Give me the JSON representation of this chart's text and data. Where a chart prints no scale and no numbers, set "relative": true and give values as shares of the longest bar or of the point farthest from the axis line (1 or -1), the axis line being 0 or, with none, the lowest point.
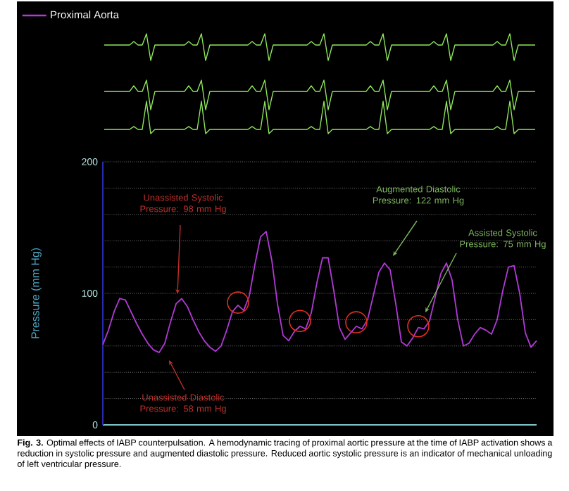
{
  "chart_data": [
    {
      "type": "line",
      "relative": true,
      "categories": [
        null,
        null,
        null,
        null,
        null,
        null,
        null,
        null,
        null,
        null,
        null,
        null,
        null,
        null,
        null,
        null,
        null,
        null,
        null,
        null,
        null,
        null,
        null,
        null,
        null,
        null,
        null,
        null,
        null,
        null,
        null,
        null,
        null,
        null,
        null,
        null,
        null,
        null,
        null,
        null,
        null,
        null,
        null,
        null,
        null,
        null,
        null,
        null,
        null,
        null,
        null,
        null,
        null,
        null,
        null,
        null,
        null,
        null,
        null,
        null,
        null,
        null,
        null,
        null,
        null,
        null,
        null,
        null,
        null,
        null,
        null,
        null,
        null,
        null,
        null,
        null,
        null,
        null,
        null,
        null,
        null,
        null,
        null,
        null,
        null,
        null,
        null,
        null,
        null,
        null,
        null,
        null,
        null,
        null,
        null,
        null,
        null,
        null,
        null,
        null,
        null,
        null,
        null
      ],
      "series": [
        {
          "color": "#8ee85a",
          "values": [
            0.58,
            0.58,
            0.58,
            0.58,
            0.58,
            0.58,
            0.58,
            0.71,
            0.58,
            0.58,
            1,
            0,
            0.58,
            0.58,
            0.58,
            0.58,
            0.58,
            0.58,
            0.58,
            0.58,
            0.71,
            0.58,
            0.58,
            1,
            0,
            0.58,
            0.58,
            0.58,
            0.58,
            0.58,
            0.58,
            0.58,
            0.58,
            0.58,
            0.58,
            0.71,
            0.58,
            0.58,
            1,
            0,
            0.58,
            0.58,
            0.58,
            0.58,
            0.58,
            0.58,
            0.58,
            0.58,
            0.58,
            0.71,
            0.58,
            0.58,
            1,
            0,
            0.58,
            0.58,
            0.58,
            0.58,
            0.58,
            0.58,
            0.58,
            0.58,
            0.58,
            0.71,
            0.58,
            0.58,
            1,
            0,
            0.58,
            0.58,
            0.58,
            0.58,
            0.58,
            0.58,
            0.58,
            0.58,
            0.58,
            0.58,
            0.71,
            0.58,
            0.58,
            1,
            0,
            0.58,
            0.58,
            0.58,
            0.58,
            0.58,
            0.58,
            0.58,
            0.58,
            0.58,
            0.58,
            0.71,
            0.58,
            0.58,
            1,
            0,
            0.58,
            0.58,
            0.58,
            0.58,
            0.58
          ]
        }
      ]
    },
    {
      "type": "line",
      "relative": true,
      "categories": [
        null,
        null,
        null,
        null,
        null,
        null,
        null,
        null,
        null,
        null,
        null,
        null,
        null,
        null,
        null,
        null,
        null,
        null,
        null,
        null,
        null,
        null,
        null,
        null,
        null,
        null,
        null,
        null,
        null,
        null,
        null,
        null,
        null,
        null,
        null,
        null,
        null,
        null,
        null,
        null,
        null,
        null,
        null,
        null,
        null,
        null,
        null,
        null,
        null,
        null,
        null,
        null,
        null,
        null,
        null,
        null,
        null,
        null,
        null,
        null,
        null,
        null,
        null,
        null,
        null,
        null,
        null,
        null,
        null,
        null,
        null,
        null,
        null,
        null,
        null,
        null,
        null,
        null,
        null,
        null,
        null,
        null,
        null,
        null,
        null,
        null,
        null,
        null,
        null,
        null,
        null,
        null,
        null,
        null,
        null,
        null,
        null,
        null,
        null,
        null,
        null,
        null,
        null
      ],
      "series": [
        {
          "color": "#8ee85a",
          "values": [
            0.62,
            0.62,
            0.62,
            0.62,
            0.62,
            0.62,
            0.62,
            0.81,
            0.62,
            0.62,
            1,
            0,
            0.62,
            0.62,
            0.62,
            0.62,
            0.62,
            0.62,
            0.62,
            0.62,
            0.81,
            0.62,
            0.62,
            1,
            0,
            0.62,
            0.62,
            0.62,
            0.62,
            0.62,
            0.62,
            0.62,
            0.62,
            0.62,
            0.62,
            0.81,
            0.62,
            0.62,
            1,
            0,
            0.62,
            0.62,
            0.62,
            0.62,
            0.62,
            0.62,
            0.62,
            0.62,
            0.62,
            0.81,
            0.62,
            0.62,
            1,
            0,
            0.62,
            0.62,
            0.62,
            0.62,
            0.62,
            0.62,
            0.62,
            0.62,
            0.62,
            0.81,
            0.62,
            0.62,
            1,
            0,
            0.62,
            0.62,
            0.62,
            0.62,
            0.62,
            0.62,
            0.62,
            0.62,
            0.62,
            0.62,
            0.81,
            0.62,
            0.62,
            1,
            0,
            0.62,
            0.62,
            0.62,
            0.62,
            0.62,
            0.62,
            0.62,
            0.62,
            0.62,
            0.62,
            0.81,
            0.62,
            0.62,
            1,
            0,
            0.62,
            0.62,
            0.62,
            0.62,
            0.62
          ]
        }
      ]
    },
    {
      "type": "line",
      "relative": true,
      "categories": [
        null,
        null,
        null,
        null,
        null,
        null,
        null,
        null,
        null,
        null,
        null,
        null,
        null,
        null,
        null,
        null,
        null,
        null,
        null,
        null,
        null,
        null,
        null,
        null,
        null,
        null,
        null,
        null,
        null,
        null,
        null,
        null,
        null,
        null,
        null,
        null,
        null,
        null,
        null,
        null,
        null,
        null,
        null,
        null,
        null,
        null,
        null,
        null,
        null,
        null,
        null,
        null,
        null,
        null,
        null,
        null,
        null,
        null,
        null,
        null,
        null,
        null,
        null,
        null,
        null,
        null,
        null,
        null,
        null,
        null,
        null,
        null,
        null,
        null,
        null,
        null,
        null,
        null,
        null,
        null,
        null,
        null,
        null,
        null,
        null,
        null,
        null,
        null,
        null,
        null,
        null,
        null,
        null,
        null,
        null,
        null,
        null,
        null,
        null,
        null,
        null,
        null,
        null
      ],
      "series": [
        {
          "color": "#8ee85a",
          "values": [
            0.13,
            0.13,
            0.13,
            0.13,
            0.13,
            0.13,
            0.13,
            0.22,
            0.13,
            0.13,
            1,
            0,
            0.13,
            0.13,
            0.13,
            0.13,
            0.13,
            0.13,
            0.13,
            0.13,
            0.22,
            0.13,
            0.13,
            1,
            0,
            0.13,
            0.13,
            0.13,
            0.13,
            0.13,
            0.13,
            0.13,
            0.13,
            0.13,
            0.13,
            0.22,
            0.13,
            0.13,
            1,
            0,
            0.13,
            0.13,
            0.13,
            0.13,
            0.13,
            0.13,
            0.13,
            0.13,
            0.13,
            0.22,
            0.13,
            0.13,
            1,
            0,
            0.13,
            0.13,
            0.13,
            0.13,
            0.13,
            0.13,
            0.13,
            0.13,
            0.13,
            0.22,
            0.13,
            0.13,
            1,
            0,
            0.13,
            0.13,
            0.13,
            0.13,
            0.13,
            0.13,
            0.13,
            0.13,
            0.13,
            0.13,
            0.22,
            0.13,
            0.13,
            1,
            0,
            0.13,
            0.13,
            0.13,
            0.13,
            0.13,
            0.13,
            0.13,
            0.13,
            0.13,
            0.13,
            0.22,
            0.13,
            0.13,
            1,
            0,
            0.13,
            0.13,
            0.13,
            0.13,
            0.13
          ]
        }
      ]
    },
    {
      "type": "line",
      "ylabel": "Pressure (mm Hg)",
      "ylim": [
        0,
        200
      ],
      "yticks": [
        0,
        {
          "value": 20,
          "label": null
        },
        {
          "value": 40,
          "label": null
        },
        {
          "value": 60,
          "label": null
        },
        {
          "value": 80,
          "label": null
        },
        100,
        {
          "value": 120,
          "label": null
        },
        {
          "value": 140,
          "label": null
        },
        {
          "value": 160,
          "label": null
        },
        {
          "value": 180,
          "label": null
        },
        200
      ],
      "grid": true,
      "legend": "top left",
      "categories": [
        null,
        null,
        null,
        null,
        null,
        null,
        null,
        null,
        null,
        null,
        null,
        null,
        null,
        null,
        null,
        null,
        null,
        null,
        null,
        null,
        null,
        null,
        null,
        null,
        null,
        null,
        null,
        null,
        null,
        null,
        null,
        null,
        null,
        null,
        null,
        null,
        null,
        null,
        null,
        null,
        null,
        null,
        null,
        null,
        null,
        null,
        null,
        null,
        null,
        null,
        null,
        null,
        null,
        null,
        null,
        null,
        null,
        null,
        null,
        null,
        null,
        null,
        null,
        null,
        null,
        null,
        null,
        null,
        null,
        null,
        null,
        null,
        null,
        null,
        null,
        null,
        null,
        null
      ],
      "series": [
        {
          "name": "Proximal Aorta",
          "color": "#b23ad6",
          "values": [
            61,
            72,
            86,
            96,
            95,
            86,
            77,
            69,
            62,
            57,
            55,
            62,
            78,
            92,
            96,
            90,
            80,
            71,
            64,
            59,
            56,
            60,
            72,
            86,
            91,
            87,
            98,
            122,
            143,
            147,
            125,
            92,
            68,
            64,
            71,
            75,
            73,
            85,
            108,
            127,
            127,
            102,
            74,
            65,
            70,
            75,
            73,
            80,
            98,
            116,
            123,
            118,
            92,
            63,
            60,
            66,
            74,
            73,
            79,
            97,
            115,
            123,
            110,
            80,
            60,
            62,
            69,
            74,
            72,
            69,
            80,
            102,
            120,
            121,
            100,
            70,
            59,
            64
          ]
        },
        {
          "type": "scatter",
          "marker": "circle",
          "color": "#e03020",
          "values": [
            null,
            null,
            null,
            null,
            null,
            null,
            null,
            null,
            null,
            null,
            null,
            null,
            null,
            null,
            null,
            null,
            null,
            null,
            null,
            null,
            null,
            null,
            null,
            null,
            93,
            null,
            null,
            null,
            null,
            null,
            null,
            null,
            null,
            null,
            null,
            79,
            null,
            null,
            null,
            null,
            null,
            null,
            null,
            null,
            null,
            78,
            null,
            null,
            null,
            null,
            null,
            null,
            null,
            null,
            null,
            null,
            75,
            null,
            null,
            null,
            null,
            null,
            null,
            null,
            null,
            null,
            null,
            null,
            null,
            null,
            null,
            null,
            null,
            null,
            null,
            null,
            null,
            null
          ]
        }
      ],
      "annotations": [
        "Unassisted Systolic Pressure: 98 mm Hg",
        "Unassisted Diastolic Pressure: 58 mm Hg",
        "Augmented Diastolic Pressure: 122 mm Hg",
        "Assisted Systolic Pressure: 75 mm Hg",
        "**Fig. 3.** Optimal effects of IABP counterpulsation. A hemodynamic tracing of proximal aortic pressure at the time of IABP activation shows a reduction in systolic pressure and augmented diastolic pressure. Reduced aortic systolic pressure is an indicator of mechanical unloading of left ventricular pressure."
      ]
    }
  ]
}
